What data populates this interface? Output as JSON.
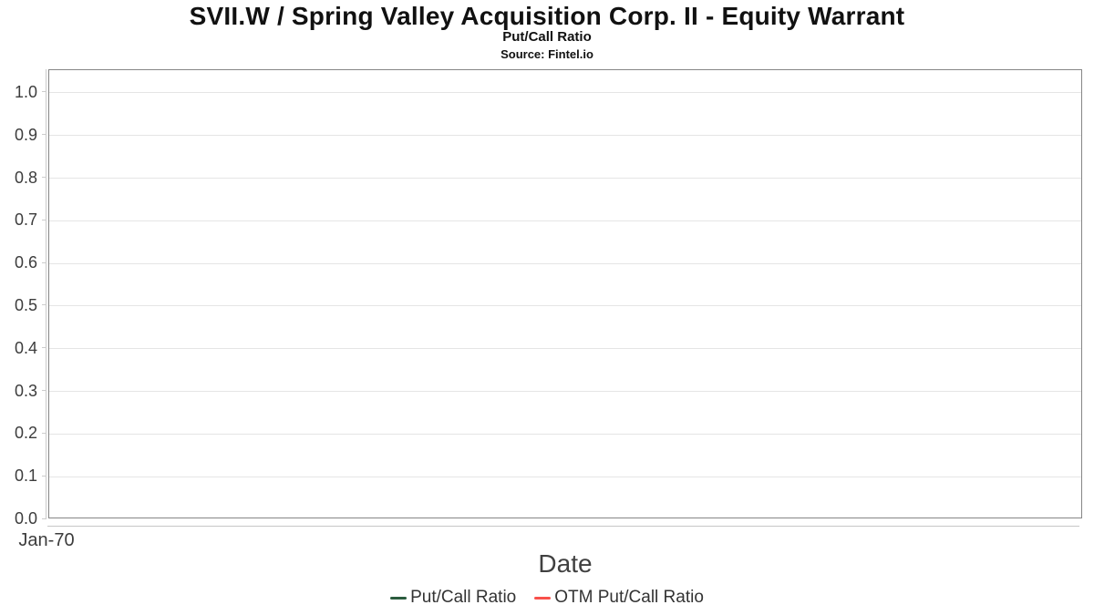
{
  "header": {
    "title": "SVII.W / Spring Valley Acquisition Corp. II - Equity Warrant",
    "subtitle": "Put/Call Ratio",
    "source": "Source: Fintel.io"
  },
  "chart_data": {
    "type": "line",
    "title": "SVII.W / Spring Valley Acquisition Corp. II - Equity Warrant",
    "subtitle": "Put/Call Ratio",
    "source": "Source: Fintel.io",
    "xlabel": "Date",
    "ylabel": "",
    "x_tick_labels": [
      "Jan-70"
    ],
    "y_tick_labels": [
      "0.0",
      "0.1",
      "0.2",
      "0.3",
      "0.4",
      "0.5",
      "0.6",
      "0.7",
      "0.8",
      "0.9",
      "1.0"
    ],
    "ylim": [
      0,
      1.053
    ],
    "grid": "horizontal",
    "legend_position": "bottom-center",
    "series": [
      {
        "name": "Put/Call Ratio",
        "color": "#2b5c3e",
        "values": []
      },
      {
        "name": "OTM Put/Call Ratio",
        "color": "#f8514b",
        "values": []
      }
    ],
    "note": "plot area is empty - no data points rendered"
  },
  "colors": {
    "plot_border": "#868686",
    "gridline": "#e5e5e5",
    "axis_line": "#c9c9c9",
    "title_text": "#111111",
    "tick_text": "#3c3c3c",
    "axis_title_text": "#404040",
    "legend_text": "#333333",
    "put_call_green": "#2b5c3e",
    "otm_put_call_red": "#f8514b"
  }
}
